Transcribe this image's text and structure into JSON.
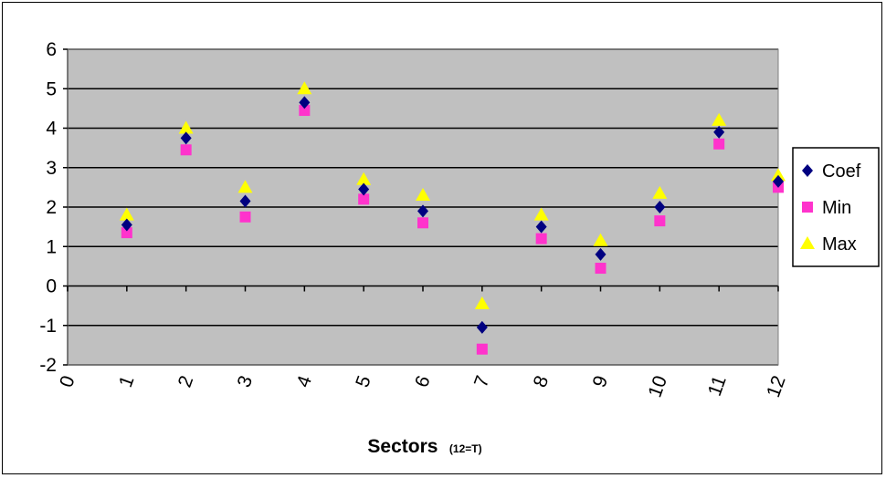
{
  "chart_data": {
    "type": "scatter",
    "title": "",
    "xlabel": "Sectors",
    "xlabel_note": "(12=T)",
    "ylabel": "",
    "xlim": [
      0,
      12
    ],
    "ylim": [
      -2,
      6
    ],
    "x_ticks": [
      "0",
      "1",
      "2",
      "3",
      "4",
      "5",
      "6",
      "7",
      "8",
      "9",
      "10",
      "11",
      "12"
    ],
    "y_ticks": [
      "6",
      "5",
      "4",
      "3",
      "2",
      "1",
      "0",
      "-1",
      "-2"
    ],
    "grid": "horizontal",
    "legend_position": "right",
    "x": [
      1,
      2,
      3,
      4,
      5,
      6,
      7,
      8,
      9,
      10,
      11,
      12
    ],
    "series": [
      {
        "name": "Coef",
        "marker": "diamond",
        "color": "#000080",
        "values": [
          1.55,
          3.75,
          2.15,
          4.65,
          2.45,
          1.9,
          -1.05,
          1.5,
          0.8,
          2.0,
          3.9,
          2.65
        ]
      },
      {
        "name": "Min",
        "marker": "square",
        "color": "#ff33cc",
        "values": [
          1.35,
          3.45,
          1.75,
          4.45,
          2.2,
          1.6,
          -1.6,
          1.2,
          0.45,
          1.65,
          3.6,
          2.5
        ]
      },
      {
        "name": "Max",
        "marker": "triangle",
        "color": "#ffff00",
        "values": [
          1.8,
          4.0,
          2.5,
          5.0,
          2.7,
          2.3,
          -0.45,
          1.8,
          1.15,
          2.35,
          4.2,
          2.8
        ]
      }
    ],
    "colors": {
      "plot_background": "#c0c0c0",
      "gridline": "#000000"
    }
  }
}
